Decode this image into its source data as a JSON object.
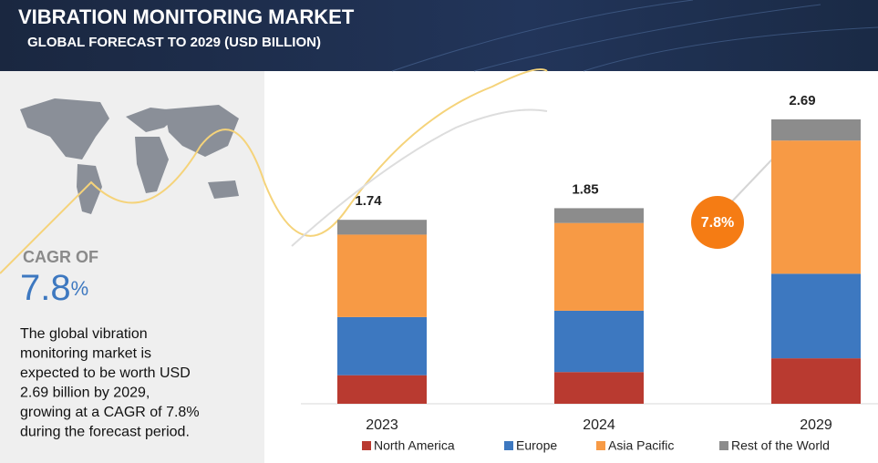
{
  "chart_data": {
    "type": "stacked_bar",
    "title": "VIBRATION MONITORING MARKET",
    "subtitle": "GLOBAL FORECAST TO 2029 (USD BILLION)",
    "categories": [
      "2023",
      "2024",
      "2029"
    ],
    "totals": [
      1.74,
      1.85,
      2.69
    ],
    "series": [
      {
        "name": "North America",
        "color": "#b93a30",
        "values": [
          0.27,
          0.3,
          0.43
        ]
      },
      {
        "name": "Europe",
        "color": "#3d78c0",
        "values": [
          0.55,
          0.58,
          0.8
        ]
      },
      {
        "name": "Asia Pacific",
        "color": "#f79a45",
        "values": [
          0.78,
          0.83,
          1.26
        ]
      },
      {
        "name": "Rest of the World",
        "color": "#8c8c8c",
        "values": [
          0.14,
          0.14,
          0.2
        ]
      }
    ],
    "cagr_badge": "7.8%",
    "cagr": {
      "label": "CAGR OF",
      "value": "7.8",
      "unit": "%"
    },
    "description": [
      "The global vibration",
      "monitoring market is",
      "expected to be worth USD",
      "2.69 billion  by 2029,",
      "growing at a CAGR of 7.8%",
      "during the forecast period."
    ]
  }
}
